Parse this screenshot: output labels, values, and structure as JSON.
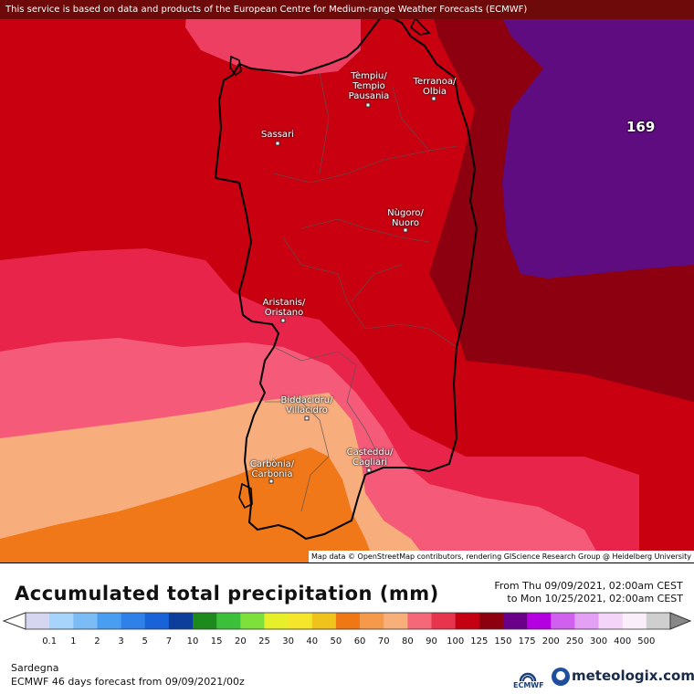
{
  "banner": "This service is based on data and products of the European Centre for Medium-range Weather Forecasts (ECMWF)",
  "attribution": "Map data © OpenStreetMap contributors, rendering GIScience Research Group @ Heidelberg University",
  "max_label": "169",
  "cities": [
    {
      "name": "Tèmpiu/\nTempio\nPausania"
    },
    {
      "name": "Terranoa/\nOlbia"
    },
    {
      "name": "Sassari"
    },
    {
      "name": "Nùgoro/\nNuoro"
    },
    {
      "name": "Aristanis/\nOristano"
    },
    {
      "name": "Biddacidru/\nVillacidro"
    },
    {
      "name": "Casteddu/\nCagliari"
    },
    {
      "name": "Carbònia/\nCarbonia"
    }
  ],
  "title": "Accumulated total precipitation (mm)",
  "period_from": "From Thu 09/09/2021, 02:00am CEST",
  "period_to": "to Mon 10/25/2021, 02:00am CEST",
  "scale": {
    "labels": [
      "0.1",
      "1",
      "2",
      "3",
      "5",
      "7",
      "10",
      "15",
      "20",
      "25",
      "30",
      "40",
      "50",
      "60",
      "70",
      "80",
      "90",
      "100",
      "125",
      "150",
      "175",
      "200",
      "250",
      "300",
      "400",
      "500"
    ],
    "colors": [
      "#d6d6f0",
      "#a6d4fa",
      "#7bbcf7",
      "#4a9ef2",
      "#2f80e8",
      "#1a62d8",
      "#0d3e9c",
      "#1e8a1e",
      "#3cc03c",
      "#7ee03a",
      "#e6ef2a",
      "#f5e62c",
      "#f0c21c",
      "#f07814",
      "#f59a4a",
      "#f8b07a",
      "#f5687a",
      "#e8344c",
      "#c40012",
      "#8c0010",
      "#6a008a",
      "#b400e0",
      "#d060ee",
      "#e4a0f4",
      "#f4d4f8",
      "#fbeefb",
      "#cfcfcf"
    ]
  },
  "region": "Sardegna",
  "model_line": "ECMWF 46 days forecast from  09/09/2021/00z",
  "ecmwf_label": "ECMWF",
  "brand": "meteologix.com"
}
